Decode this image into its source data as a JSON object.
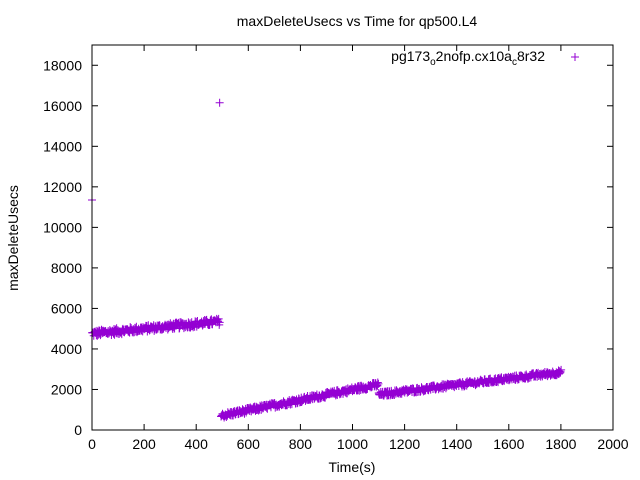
{
  "chart_data": {
    "type": "scatter",
    "title": "maxDeleteUsecs vs Time for qp500.L4",
    "xlabel": "Time(s)",
    "ylabel": "maxDeleteUsecs",
    "xlim": [
      0,
      2000
    ],
    "ylim": [
      0,
      19000
    ],
    "x_ticks": [
      0,
      200,
      400,
      600,
      800,
      1000,
      1200,
      1400,
      1600,
      1800,
      2000
    ],
    "y_ticks": [
      0,
      2000,
      4000,
      6000,
      8000,
      10000,
      12000,
      14000,
      16000,
      18000
    ],
    "grid": false,
    "legend_position": "top-right",
    "marker": "plus",
    "series": [
      {
        "legend": {
          "base": "pg173",
          "sub1": "o",
          "mid": "2nofp.cx10a",
          "sub2": "c",
          "tail": "8r32"
        },
        "color": "#9400d3",
        "outliers": [
          [
            0,
            11350
          ],
          [
            490,
            16150
          ]
        ],
        "segments": [
          {
            "x_start": 0,
            "x_end": 490,
            "y_start": 4750,
            "y_end": 5350,
            "spread": 160,
            "step": 2
          },
          {
            "x_start": 495,
            "x_end": 1100,
            "y_start": 700,
            "y_end": 2250,
            "spread": 130,
            "step": 2
          },
          {
            "x_start": 1100,
            "x_end": 1800,
            "y_start": 1750,
            "y_end": 2850,
            "spread": 120,
            "step": 2
          }
        ]
      }
    ]
  }
}
